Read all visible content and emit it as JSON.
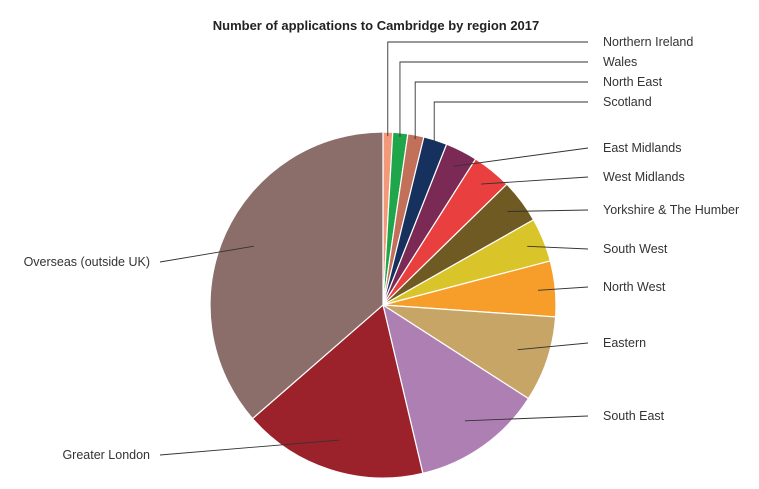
{
  "chart_data": {
    "type": "pie",
    "title": "Number of applications to Cambridge by region 2017",
    "slices": [
      {
        "label": "Northern Ireland",
        "value": 0.9,
        "color": "#f2997a"
      },
      {
        "label": "Wales",
        "value": 1.4,
        "color": "#1fa64a"
      },
      {
        "label": "North East",
        "value": 1.5,
        "color": "#c2705a"
      },
      {
        "label": "Scotland",
        "value": 2.2,
        "color": "#16315e"
      },
      {
        "label": "East Midlands",
        "value": 3.0,
        "color": "#7b2a55"
      },
      {
        "label": "West Midlands",
        "value": 3.7,
        "color": "#e9403f"
      },
      {
        "label": "Yorkshire & The Humber",
        "value": 4.1,
        "color": "#705a23"
      },
      {
        "label": "South West",
        "value": 4.1,
        "color": "#d9c42a"
      },
      {
        "label": "North West",
        "value": 5.2,
        "color": "#f79e2a"
      },
      {
        "label": "Eastern",
        "value": 8.0,
        "color": "#c7a567"
      },
      {
        "label": "South East",
        "value": 12.2,
        "color": "#ae7fb3"
      },
      {
        "label": "Greater London",
        "value": 17.3,
        "color": "#9b222b"
      },
      {
        "label": "Overseas (outside UK)",
        "value": 36.4,
        "color": "#8b6e69"
      }
    ]
  }
}
